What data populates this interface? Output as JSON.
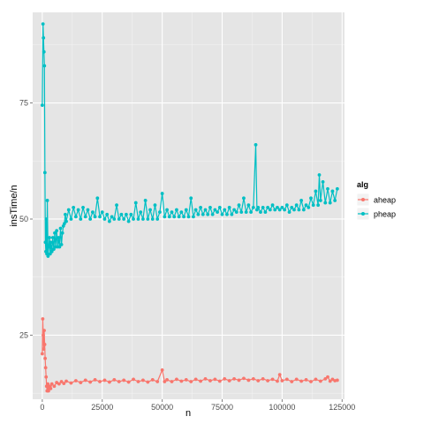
{
  "chart_data": {
    "type": "line",
    "title": "",
    "xlabel": "n",
    "ylabel": "insTime/n",
    "xlim": [
      -4000,
      126000
    ],
    "ylim": [
      11.2,
      94.5
    ],
    "x_ticks": [
      0,
      25000,
      50000,
      75000,
      100000,
      125000
    ],
    "x_tick_labels": [
      "0",
      "25000",
      "50000",
      "75000",
      "100000",
      "125000"
    ],
    "y_ticks": [
      25,
      50,
      75
    ],
    "y_tick_labels": [
      "25",
      "50",
      "75"
    ],
    "grid": true,
    "legend": {
      "title": "alg",
      "placement": "right"
    },
    "series": [
      {
        "name": "aheap",
        "color": "#F8766D",
        "points": [
          [
            0,
            21
          ],
          [
            200,
            28.5
          ],
          [
            400,
            25
          ],
          [
            600,
            22
          ],
          [
            800,
            26
          ],
          [
            1000,
            23
          ],
          [
            1200,
            20
          ],
          [
            1400,
            18
          ],
          [
            1600,
            16
          ],
          [
            1800,
            14
          ],
          [
            2000,
            13
          ],
          [
            2300,
            14.5
          ],
          [
            2600,
            13
          ],
          [
            3000,
            14
          ],
          [
            3500,
            13.5
          ],
          [
            4000,
            14.5
          ],
          [
            5000,
            14
          ],
          [
            6000,
            14.8
          ],
          [
            7000,
            14.5
          ],
          [
            8000,
            15
          ],
          [
            9000,
            14.6
          ],
          [
            10000,
            15.1
          ],
          [
            12000,
            14.7
          ],
          [
            14000,
            15.2
          ],
          [
            16000,
            14.8
          ],
          [
            18000,
            15.3
          ],
          [
            20000,
            14.9
          ],
          [
            22000,
            15.4
          ],
          [
            24000,
            15
          ],
          [
            26000,
            15.3
          ],
          [
            28000,
            14.9
          ],
          [
            30000,
            15.4
          ],
          [
            32000,
            15
          ],
          [
            34000,
            15.3
          ],
          [
            36000,
            14.9
          ],
          [
            38000,
            15.5
          ],
          [
            40000,
            15
          ],
          [
            42000,
            15.3
          ],
          [
            44000,
            14.9
          ],
          [
            46000,
            15.4
          ],
          [
            48000,
            15
          ],
          [
            50000,
            17.5
          ],
          [
            51000,
            15
          ],
          [
            52000,
            15.4
          ],
          [
            54000,
            15
          ],
          [
            56000,
            15.5
          ],
          [
            58000,
            15.1
          ],
          [
            60000,
            15.4
          ],
          [
            62000,
            15
          ],
          [
            64000,
            15.5
          ],
          [
            66000,
            15.1
          ],
          [
            68000,
            15.6
          ],
          [
            70000,
            15.2
          ],
          [
            72000,
            15.5
          ],
          [
            74000,
            15.1
          ],
          [
            76000,
            15.6
          ],
          [
            78000,
            15.2
          ],
          [
            80000,
            15.6
          ],
          [
            82000,
            15.3
          ],
          [
            84000,
            15.7
          ],
          [
            86000,
            15.3
          ],
          [
            88000,
            15.6
          ],
          [
            90000,
            15.2
          ],
          [
            92000,
            15.6
          ],
          [
            94000,
            15.2
          ],
          [
            96000,
            15.5
          ],
          [
            98000,
            15.1
          ],
          [
            99000,
            16.5
          ],
          [
            100000,
            15.2
          ],
          [
            102000,
            15.5
          ],
          [
            104000,
            15
          ],
          [
            106000,
            15.5
          ],
          [
            108000,
            15.1
          ],
          [
            110000,
            15.4
          ],
          [
            112000,
            15
          ],
          [
            114000,
            15.5
          ],
          [
            116000,
            15.1
          ],
          [
            118000,
            15.6
          ],
          [
            119000,
            16
          ],
          [
            120000,
            15.1
          ],
          [
            121000,
            15.5
          ],
          [
            122000,
            15.2
          ],
          [
            123000,
            15.3
          ]
        ]
      },
      {
        "name": "pheap",
        "color": "#00BFC4",
        "points": [
          [
            0,
            74.5
          ],
          [
            300,
            92
          ],
          [
            500,
            89
          ],
          [
            700,
            86
          ],
          [
            900,
            83
          ],
          [
            1100,
            60
          ],
          [
            1300,
            45
          ],
          [
            1500,
            43
          ],
          [
            1700,
            50
          ],
          [
            1900,
            42.5
          ],
          [
            2100,
            54
          ],
          [
            2400,
            42
          ],
          [
            2700,
            44
          ],
          [
            3000,
            46
          ],
          [
            3300,
            42.5
          ],
          [
            3600,
            45
          ],
          [
            4000,
            43
          ],
          [
            4400,
            46
          ],
          [
            4800,
            43.5
          ],
          [
            5200,
            47
          ],
          [
            5600,
            44
          ],
          [
            6000,
            47.5
          ],
          [
            6400,
            44
          ],
          [
            6800,
            46
          ],
          [
            7200,
            44
          ],
          [
            7600,
            48
          ],
          [
            8000,
            44.5
          ],
          [
            8400,
            47
          ],
          [
            8800,
            48.5
          ],
          [
            9200,
            49
          ],
          [
            9600,
            51
          ],
          [
            10000,
            49.5
          ],
          [
            11000,
            52
          ],
          [
            12000,
            50
          ],
          [
            13000,
            52.5
          ],
          [
            14000,
            50.5
          ],
          [
            15000,
            52
          ],
          [
            16000,
            50
          ],
          [
            17000,
            52.5
          ],
          [
            18000,
            50.5
          ],
          [
            19000,
            52
          ],
          [
            20000,
            50
          ],
          [
            21000,
            51.5
          ],
          [
            22000,
            50.5
          ],
          [
            23000,
            54.5
          ],
          [
            24000,
            50.5
          ],
          [
            25000,
            51.5
          ],
          [
            26000,
            50
          ],
          [
            27000,
            51
          ],
          [
            28000,
            49.5
          ],
          [
            29000,
            50.5
          ],
          [
            30000,
            50
          ],
          [
            31000,
            53
          ],
          [
            32000,
            50
          ],
          [
            33000,
            51
          ],
          [
            34000,
            50
          ],
          [
            35000,
            51
          ],
          [
            36000,
            49.5
          ],
          [
            37000,
            51
          ],
          [
            38000,
            50
          ],
          [
            39000,
            53.5
          ],
          [
            40000,
            50
          ],
          [
            41000,
            51.5
          ],
          [
            42000,
            50
          ],
          [
            43000,
            54
          ],
          [
            44000,
            50
          ],
          [
            45000,
            52
          ],
          [
            46000,
            50
          ],
          [
            47000,
            53
          ],
          [
            48000,
            50
          ],
          [
            49000,
            51.5
          ],
          [
            50000,
            55.5
          ],
          [
            51000,
            50.5
          ],
          [
            52000,
            52
          ],
          [
            53000,
            50.5
          ],
          [
            54000,
            51.5
          ],
          [
            55000,
            50.5
          ],
          [
            56000,
            52
          ],
          [
            57000,
            50.5
          ],
          [
            58000,
            51.5
          ],
          [
            59000,
            50.5
          ],
          [
            60000,
            52
          ],
          [
            61000,
            50.5
          ],
          [
            62000,
            54.5
          ],
          [
            63000,
            50.5
          ],
          [
            64000,
            52
          ],
          [
            65000,
            51
          ],
          [
            66000,
            52.5
          ],
          [
            67000,
            51
          ],
          [
            68000,
            52
          ],
          [
            69000,
            51
          ],
          [
            70000,
            52.5
          ],
          [
            71000,
            51
          ],
          [
            72000,
            52
          ],
          [
            73000,
            51.5
          ],
          [
            74000,
            52.5
          ],
          [
            75000,
            51
          ],
          [
            76000,
            52
          ],
          [
            77000,
            51
          ],
          [
            78000,
            52.5
          ],
          [
            79000,
            51
          ],
          [
            80000,
            52
          ],
          [
            81000,
            51.5
          ],
          [
            82000,
            53
          ],
          [
            83000,
            51.5
          ],
          [
            84000,
            54.5
          ],
          [
            85000,
            51.5
          ],
          [
            86000,
            53
          ],
          [
            87000,
            51.5
          ],
          [
            88000,
            52.5
          ],
          [
            89000,
            66
          ],
          [
            89500,
            52
          ],
          [
            90000,
            52.5
          ],
          [
            91000,
            51.5
          ],
          [
            92000,
            52.5
          ],
          [
            93000,
            51.5
          ],
          [
            94000,
            52.5
          ],
          [
            95000,
            52
          ],
          [
            96000,
            53
          ],
          [
            97000,
            52
          ],
          [
            98000,
            52.5
          ],
          [
            99000,
            52
          ],
          [
            100000,
            52.5
          ],
          [
            101000,
            52
          ],
          [
            102000,
            53
          ],
          [
            103000,
            51.5
          ],
          [
            104000,
            52.5
          ],
          [
            105000,
            52
          ],
          [
            106000,
            53
          ],
          [
            107000,
            52
          ],
          [
            108000,
            54
          ],
          [
            109000,
            52
          ],
          [
            110000,
            53
          ],
          [
            111000,
            52.5
          ],
          [
            112000,
            54.5
          ],
          [
            113000,
            53
          ],
          [
            114000,
            56
          ],
          [
            115000,
            53
          ],
          [
            115500,
            59.5
          ],
          [
            116000,
            54
          ],
          [
            117000,
            58
          ],
          [
            118000,
            53.5
          ],
          [
            119000,
            56.5
          ],
          [
            120000,
            53.5
          ],
          [
            121000,
            56
          ],
          [
            122000,
            54
          ],
          [
            123000,
            56.5
          ]
        ]
      }
    ]
  }
}
